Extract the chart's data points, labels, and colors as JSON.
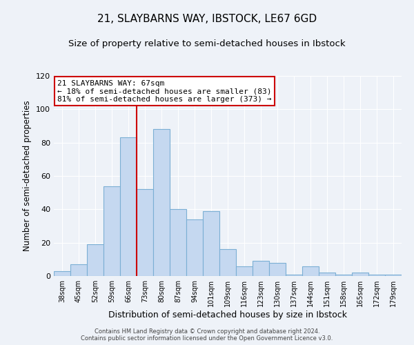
{
  "title": "21, SLAYBARNS WAY, IBSTOCK, LE67 6GD",
  "subtitle": "Size of property relative to semi-detached houses in Ibstock",
  "xlabel": "Distribution of semi-detached houses by size in Ibstock",
  "ylabel": "Number of semi-detached properties",
  "categories": [
    "38sqm",
    "45sqm",
    "52sqm",
    "59sqm",
    "66sqm",
    "73sqm",
    "80sqm",
    "87sqm",
    "94sqm",
    "101sqm",
    "109sqm",
    "116sqm",
    "123sqm",
    "130sqm",
    "137sqm",
    "144sqm",
    "151sqm",
    "158sqm",
    "165sqm",
    "172sqm",
    "179sqm"
  ],
  "values": [
    3,
    7,
    19,
    54,
    83,
    52,
    88,
    40,
    34,
    39,
    16,
    6,
    9,
    8,
    1,
    6,
    2,
    1,
    2,
    1,
    1
  ],
  "bar_color": "#c5d8f0",
  "bar_edge_color": "#7bafd4",
  "ylim": [
    0,
    120
  ],
  "yticks": [
    0,
    20,
    40,
    60,
    80,
    100,
    120
  ],
  "property_line_index": 4,
  "property_line_color": "#cc0000",
  "annotation_title": "21 SLAYBARNS WAY: 67sqm",
  "annotation_line1": "← 18% of semi-detached houses are smaller (83)",
  "annotation_line2": "81% of semi-detached houses are larger (373) →",
  "annotation_box_color": "#ffffff",
  "annotation_box_edge": "#cc0000",
  "footer1": "Contains HM Land Registry data © Crown copyright and database right 2024.",
  "footer2": "Contains public sector information licensed under the Open Government Licence v3.0.",
  "background_color": "#eef2f8",
  "grid_color": "#ffffff",
  "title_fontsize": 11,
  "subtitle_fontsize": 9.5
}
